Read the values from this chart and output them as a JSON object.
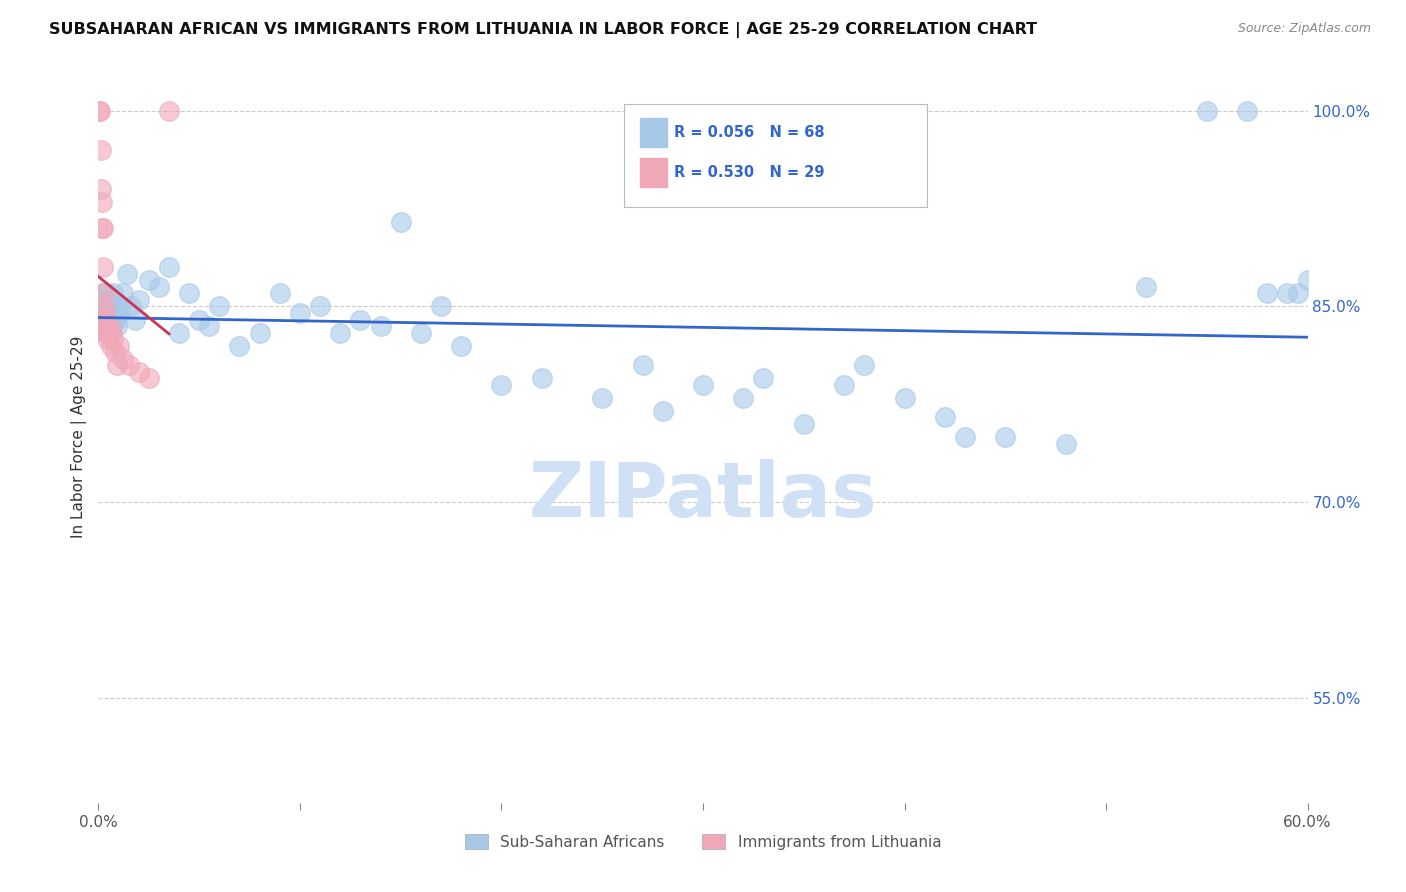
{
  "title": "SUBSAHARAN AFRICAN VS IMMIGRANTS FROM LITHUANIA IN LABOR FORCE | AGE 25-29 CORRELATION CHART",
  "source": "Source: ZipAtlas.com",
  "ylabel": "In Labor Force | Age 25-29",
  "ylabel_right_ticks": [
    100.0,
    85.0,
    70.0,
    55.0
  ],
  "xmin": 0.0,
  "xmax": 60.0,
  "ymin": 47.0,
  "ymax": 103.0,
  "legend_blue_R": "R = 0.056",
  "legend_blue_N": "N = 68",
  "legend_pink_R": "R = 0.530",
  "legend_pink_N": "N = 29",
  "legend_label_blue": "Sub-Saharan Africans",
  "legend_label_pink": "Immigrants from Lithuania",
  "blue_color": "#a8c8e8",
  "pink_color": "#f0a8b8",
  "blue_line_color": "#3366cc",
  "pink_line_color": "#cc3355",
  "blue_scatter_x": [
    0.1,
    0.15,
    0.2,
    0.25,
    0.3,
    0.35,
    0.4,
    0.45,
    0.5,
    0.55,
    0.6,
    0.65,
    0.7,
    0.75,
    0.8,
    0.85,
    0.9,
    0.95,
    1.0,
    1.1,
    1.2,
    1.4,
    1.6,
    1.8,
    2.0,
    2.5,
    3.0,
    3.5,
    4.0,
    4.5,
    5.0,
    5.5,
    6.0,
    7.0,
    8.0,
    9.0,
    10.0,
    11.0,
    12.0,
    13.0,
    14.0,
    15.0,
    16.0,
    17.0,
    18.0,
    20.0,
    22.0,
    25.0,
    27.0,
    30.0,
    32.0,
    35.0,
    38.0,
    40.0,
    42.0,
    45.0,
    48.0,
    52.0,
    55.0,
    57.0,
    58.0,
    59.0,
    59.5,
    60.0,
    28.0,
    33.0,
    37.0,
    43.0
  ],
  "blue_scatter_y": [
    85.0,
    84.5,
    86.0,
    84.0,
    85.5,
    83.0,
    86.0,
    85.0,
    84.0,
    85.5,
    84.0,
    83.5,
    86.0,
    84.5,
    85.0,
    84.0,
    83.5,
    85.0,
    84.5,
    85.0,
    86.0,
    87.5,
    85.0,
    84.0,
    85.5,
    87.0,
    86.5,
    88.0,
    83.0,
    86.0,
    84.0,
    83.5,
    85.0,
    82.0,
    83.0,
    86.0,
    84.5,
    85.0,
    83.0,
    84.0,
    83.5,
    91.5,
    83.0,
    85.0,
    82.0,
    79.0,
    79.5,
    78.0,
    80.5,
    79.0,
    78.0,
    76.0,
    80.5,
    78.0,
    76.5,
    75.0,
    74.5,
    86.5,
    100.0,
    100.0,
    86.0,
    86.0,
    86.0,
    87.0,
    77.0,
    79.5,
    79.0,
    75.0
  ],
  "pink_scatter_x": [
    0.05,
    0.1,
    0.12,
    0.15,
    0.18,
    0.2,
    0.22,
    0.25,
    0.28,
    0.3,
    0.33,
    0.35,
    0.38,
    0.4,
    0.43,
    0.45,
    0.5,
    0.55,
    0.6,
    0.65,
    0.7,
    0.8,
    0.9,
    1.0,
    1.2,
    1.5,
    2.0,
    2.5,
    3.5
  ],
  "pink_scatter_y": [
    100.0,
    100.0,
    97.0,
    94.0,
    91.0,
    93.0,
    91.0,
    88.0,
    86.0,
    85.0,
    84.5,
    84.0,
    83.5,
    84.0,
    83.0,
    82.5,
    83.0,
    83.5,
    82.0,
    83.0,
    82.5,
    81.5,
    80.5,
    82.0,
    81.0,
    80.5,
    80.0,
    79.5,
    100.0
  ],
  "watermark": "ZIPatlas",
  "watermark_color": "#d0e0f5",
  "grid_color": "#cccccc",
  "background_color": "#ffffff",
  "xtick_positions": [
    0.0,
    10.0,
    20.0,
    30.0,
    40.0,
    50.0,
    60.0
  ],
  "xtick_show_label": [
    true,
    false,
    false,
    false,
    false,
    false,
    true
  ]
}
